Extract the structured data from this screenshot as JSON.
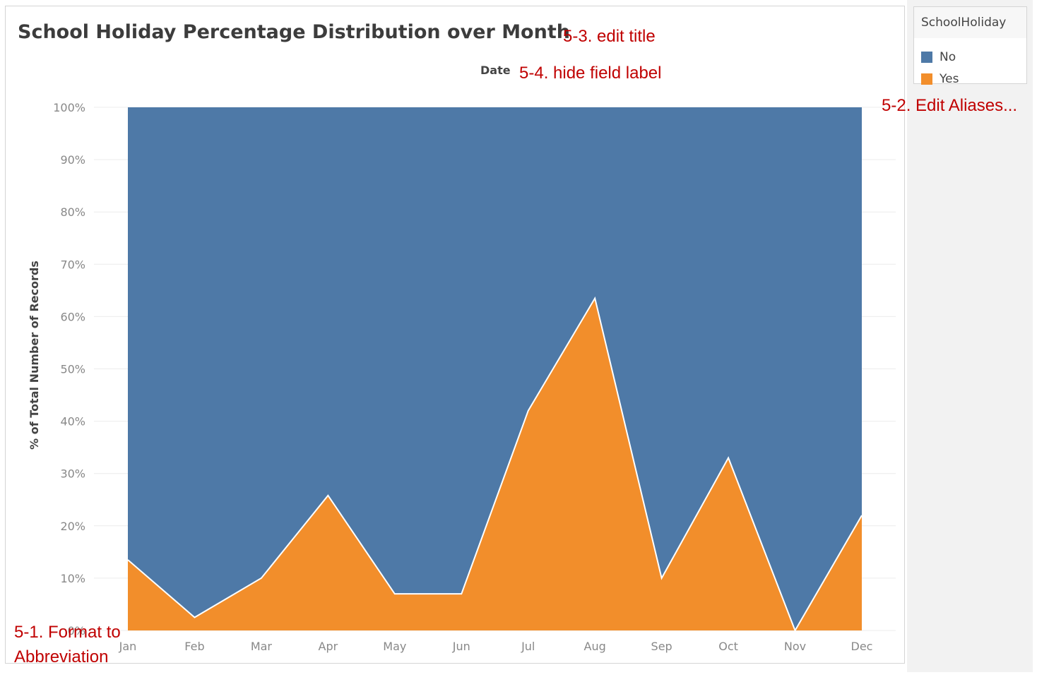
{
  "chart_data": {
    "type": "area",
    "stacked": "percent",
    "title": "School Holiday Percentage Distribution over Month",
    "xlabel": "Date",
    "ylabel": "% of Total Number of Records",
    "categories": [
      "Jan",
      "Feb",
      "Mar",
      "Apr",
      "May",
      "Jun",
      "Jul",
      "Aug",
      "Sep",
      "Oct",
      "Nov",
      "Dec"
    ],
    "y_ticks": [
      "0%",
      "10%",
      "20%",
      "30%",
      "40%",
      "50%",
      "60%",
      "70%",
      "80%",
      "90%",
      "100%"
    ],
    "ylim": [
      0,
      100
    ],
    "grid": true,
    "legend": {
      "title": "SchoolHoliday",
      "placement": "top-right",
      "entries": [
        {
          "label": "No",
          "color": "#4e79a7"
        },
        {
          "label": "Yes",
          "color": "#f28e2b"
        }
      ]
    },
    "series": [
      {
        "name": "Yes",
        "color": "#f28e2b",
        "values": [
          13.5,
          2.5,
          10,
          25.8,
          7,
          7,
          42,
          63.5,
          10,
          33,
          0,
          22
        ]
      },
      {
        "name": "No",
        "color": "#4e79a7",
        "values": [
          86.5,
          97.5,
          90,
          74.2,
          93,
          93,
          58,
          36.5,
          90,
          67,
          100,
          78
        ]
      }
    ]
  },
  "annotations": {
    "format": "5-1. Format to",
    "format_line2": "Abbreviation",
    "aliases": "5-2. Edit Aliases...",
    "title": "5-3. edit title",
    "field_label": "5-4. hide field label"
  }
}
